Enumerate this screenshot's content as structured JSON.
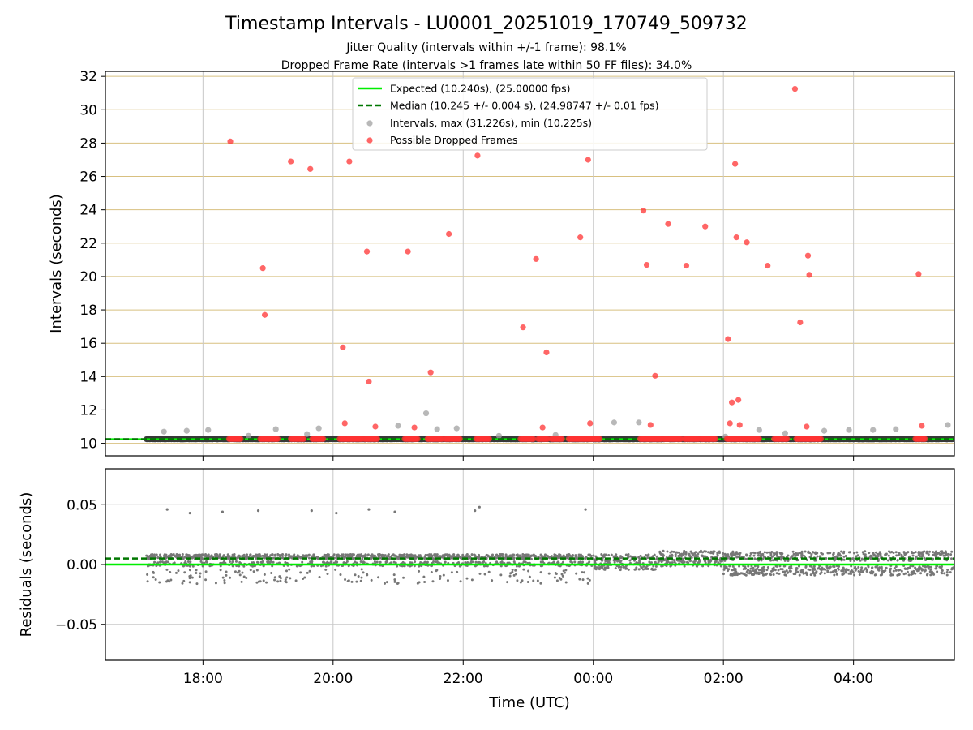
{
  "chart_data": {
    "type": "scatter",
    "title": "Timestamp Intervals - LU0001_20251019_170749_509732",
    "subtitle_lines": [
      "Jitter Quality (intervals within +/-1 frame): 98.1%",
      "Dropped Frame Rate (intervals >1 frames late within 50 FF files): 34.0%"
    ],
    "xlabel": "Time (UTC)",
    "x_ticks": [
      "18:00",
      "20:00",
      "22:00",
      "00:00",
      "02:00",
      "04:00"
    ],
    "x_tick_hours": [
      18,
      20,
      22,
      24,
      26,
      28
    ],
    "x_range_hours": [
      16.5,
      29.55
    ],
    "data_start_hour": 17.13,
    "data_end_hour": 29.55,
    "legend_position": "upper center",
    "colors": {
      "expected": "#00ee00",
      "median": "#007700",
      "intervals": "#a0a0a0",
      "dropped": "#ff3333",
      "residuals": "#777777",
      "hgrid_top": "#d8c080",
      "grid": "#c8c8c8"
    },
    "top_panel": {
      "ylabel": "Intervals (seconds)",
      "ylim": [
        9.25,
        32.3
      ],
      "y_ticks": [
        10,
        12,
        14,
        16,
        18,
        20,
        22,
        24,
        26,
        28,
        30,
        32
      ],
      "expected_value": 10.24,
      "median_value": 10.245,
      "legend": [
        "Expected (10.240s), (25.00000 fps)",
        "Median (10.245 +/- 0.004 s), (24.98747 +/- 0.01 fps)",
        "Intervals, max (31.226s), min (10.225s)",
        "Possible Dropped Frames"
      ],
      "interval_points": [
        [
          17.4,
          10.7
        ],
        [
          17.75,
          10.75
        ],
        [
          18.08,
          10.8
        ],
        [
          18.7,
          10.45
        ],
        [
          19.12,
          10.85
        ],
        [
          19.6,
          10.55
        ],
        [
          19.78,
          10.9
        ],
        [
          21.0,
          11.05
        ],
        [
          21.43,
          11.8
        ],
        [
          21.6,
          10.85
        ],
        [
          21.9,
          10.9
        ],
        [
          22.55,
          10.45
        ],
        [
          23.42,
          10.5
        ],
        [
          24.32,
          11.25
        ],
        [
          24.7,
          11.25
        ],
        [
          26.03,
          10.4
        ],
        [
          26.55,
          10.8
        ],
        [
          26.95,
          10.6
        ],
        [
          27.55,
          10.75
        ],
        [
          27.93,
          10.8
        ],
        [
          28.3,
          10.8
        ],
        [
          28.65,
          10.85
        ],
        [
          29.45,
          11.1
        ]
      ],
      "dropped_points": [
        [
          18.42,
          28.1
        ],
        [
          18.92,
          20.5
        ],
        [
          18.95,
          17.7
        ],
        [
          19.35,
          26.9
        ],
        [
          19.65,
          26.45
        ],
        [
          20.15,
          15.75
        ],
        [
          20.18,
          11.2
        ],
        [
          20.25,
          26.9
        ],
        [
          20.52,
          21.5
        ],
        [
          20.55,
          13.7
        ],
        [
          20.65,
          11.0
        ],
        [
          21.15,
          21.5
        ],
        [
          21.25,
          10.95
        ],
        [
          21.5,
          14.25
        ],
        [
          21.78,
          22.55
        ],
        [
          22.22,
          27.25
        ],
        [
          22.92,
          16.95
        ],
        [
          23.12,
          21.05
        ],
        [
          23.22,
          10.95
        ],
        [
          23.28,
          15.45
        ],
        [
          23.8,
          22.35
        ],
        [
          23.92,
          27.0
        ],
        [
          23.95,
          11.2
        ],
        [
          24.77,
          23.95
        ],
        [
          24.82,
          20.7
        ],
        [
          24.88,
          11.1
        ],
        [
          24.95,
          14.05
        ],
        [
          25.15,
          23.15
        ],
        [
          25.43,
          20.65
        ],
        [
          25.72,
          23.0
        ],
        [
          26.07,
          16.25
        ],
        [
          26.1,
          11.2
        ],
        [
          26.13,
          12.45
        ],
        [
          26.18,
          26.75
        ],
        [
          26.2,
          22.35
        ],
        [
          26.23,
          12.6
        ],
        [
          26.25,
          11.1
        ],
        [
          26.36,
          22.05
        ],
        [
          26.68,
          20.65
        ],
        [
          27.1,
          31.25
        ],
        [
          27.18,
          17.25
        ],
        [
          27.28,
          11.0
        ],
        [
          27.3,
          21.25
        ],
        [
          27.32,
          20.1
        ],
        [
          29.0,
          20.15
        ],
        [
          29.05,
          11.05
        ]
      ],
      "dropped_clusters": [
        [
          18.4,
          18.58
        ],
        [
          18.88,
          19.15
        ],
        [
          19.35,
          19.55
        ],
        [
          19.68,
          19.85
        ],
        [
          20.1,
          20.45
        ],
        [
          20.48,
          20.68
        ],
        [
          21.1,
          21.3
        ],
        [
          21.45,
          21.68
        ],
        [
          21.72,
          21.95
        ],
        [
          22.2,
          22.4
        ],
        [
          22.88,
          23.08
        ],
        [
          23.15,
          23.3
        ],
        [
          23.35,
          23.52
        ],
        [
          23.62,
          24.1
        ],
        [
          24.72,
          25.05
        ],
        [
          25.08,
          25.35
        ],
        [
          25.4,
          25.62
        ],
        [
          25.65,
          25.88
        ],
        [
          26.05,
          26.55
        ],
        [
          26.78,
          26.98
        ],
        [
          27.12,
          27.5
        ],
        [
          28.95,
          29.1
        ]
      ]
    },
    "bottom_panel": {
      "ylabel": "Residuals (seconds)",
      "ylim": [
        -0.08,
        0.08
      ],
      "y_ticks": [
        0.05,
        0.0,
        -0.05
      ],
      "y_tick_labels": [
        "0.05",
        "0.00",
        "−0.05"
      ],
      "median_residual": 0.005,
      "outlier_points": [
        [
          17.45,
          0.046
        ],
        [
          17.8,
          0.043
        ],
        [
          18.3,
          0.044
        ],
        [
          18.85,
          0.045
        ],
        [
          19.67,
          0.045
        ],
        [
          20.05,
          0.043
        ],
        [
          20.55,
          0.046
        ],
        [
          20.95,
          0.044
        ],
        [
          22.18,
          0.045
        ],
        [
          22.25,
          0.048
        ],
        [
          23.88,
          0.046
        ]
      ]
    }
  }
}
